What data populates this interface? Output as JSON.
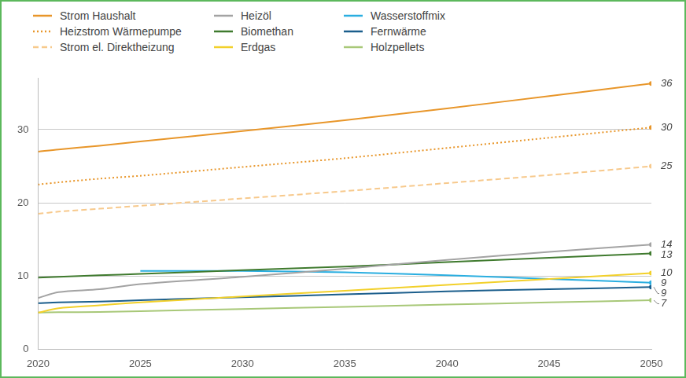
{
  "chart_data": {
    "type": "line",
    "x": [
      2020,
      2021,
      2023,
      2025,
      2030,
      2035,
      2040,
      2045,
      2050
    ],
    "xlim": [
      2020,
      2050
    ],
    "xticks": [
      2020,
      2025,
      2030,
      2035,
      2040,
      2045,
      2050
    ],
    "ylim": [
      0,
      37
    ],
    "yticks": [
      0,
      10,
      20,
      30
    ],
    "grid": true,
    "legend": "top",
    "series": [
      {
        "name": "Strom Haushalt",
        "color": "#e8962a",
        "line_style": "solid",
        "values": [
          27.0,
          27.3,
          27.8,
          28.4,
          29.8,
          31.3,
          32.9,
          34.6,
          36.3
        ]
      },
      {
        "name": "Heizstrom Wärmepumpe",
        "color": "#e8962a",
        "line_style": "dotted",
        "values": [
          22.5,
          22.8,
          23.3,
          23.7,
          24.9,
          26.1,
          27.5,
          28.9,
          30.3
        ]
      },
      {
        "name": "Strom el. Direktheizung",
        "color": "#f7c98c",
        "line_style": "dashed",
        "values": [
          18.5,
          18.8,
          19.2,
          19.6,
          20.6,
          21.6,
          22.7,
          23.8,
          25.0
        ]
      },
      {
        "name": "Heizöl",
        "color": "#a3a3a3",
        "line_style": "solid",
        "values": [
          7.0,
          7.8,
          8.2,
          8.9,
          9.9,
          11.0,
          12.2,
          13.3,
          14.3
        ]
      },
      {
        "name": "Biomethan",
        "color": "#3f7a2e",
        "line_style": "solid",
        "values": [
          9.8,
          9.9,
          10.1,
          10.3,
          10.8,
          11.3,
          11.9,
          12.5,
          13.1
        ]
      },
      {
        "name": "Erdgas",
        "color": "#f2d02a",
        "line_style": "solid",
        "values": [
          5.0,
          5.6,
          6.0,
          6.4,
          7.2,
          8.0,
          8.8,
          9.6,
          10.4
        ]
      },
      {
        "name": "Wasserstoffmix",
        "color": "#2aaee0",
        "line_style": "solid",
        "values": [
          null,
          null,
          null,
          10.7,
          10.7,
          10.5,
          10.1,
          9.6,
          9.1
        ]
      },
      {
        "name": "Fernwärme",
        "color": "#1b5e8c",
        "line_style": "solid",
        "values": [
          6.3,
          6.4,
          6.5,
          6.7,
          7.1,
          7.5,
          7.9,
          8.2,
          8.5
        ]
      },
      {
        "name": "Holzpellets",
        "color": "#a8c878",
        "line_style": "solid",
        "values": [
          5.0,
          5.05,
          5.1,
          5.2,
          5.5,
          5.8,
          6.1,
          6.4,
          6.7
        ]
      }
    ],
    "annotations": [
      {
        "text": "36",
        "series": "Strom Haushalt"
      },
      {
        "text": "30",
        "series": "Heizstrom Wärmepumpe"
      },
      {
        "text": "25",
        "series": "Strom el. Direktheizung"
      },
      {
        "text": "14",
        "series": "Heizöl"
      },
      {
        "text": "13",
        "series": "Biomethan"
      },
      {
        "text": "10",
        "series": "Erdgas"
      },
      {
        "text": "9",
        "series": "Wasserstoffmix"
      },
      {
        "text": "9",
        "series": "Fernwärme"
      },
      {
        "text": "7",
        "series": "Holzpellets"
      }
    ]
  }
}
